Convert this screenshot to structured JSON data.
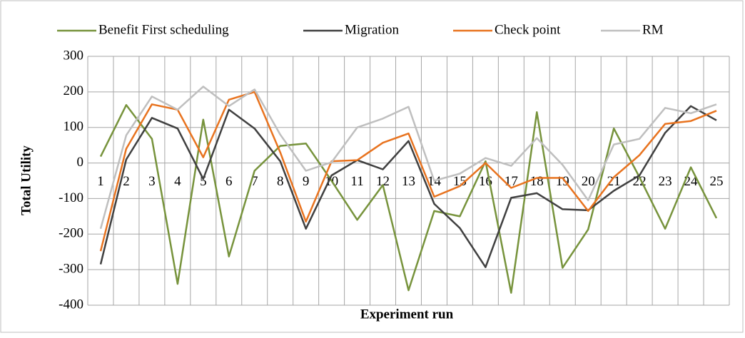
{
  "chart_data": {
    "type": "line",
    "x_label": "Experiment run",
    "y_label": "Total Utility",
    "categories": [
      "1",
      "2",
      "3",
      "4",
      "5",
      "6",
      "7",
      "8",
      "9",
      "10",
      "11",
      "12",
      "13",
      "14",
      "15",
      "16",
      "17",
      "18",
      "19",
      "20",
      "21",
      "22",
      "23",
      "24",
      "25"
    ],
    "series": [
      {
        "name": "Benefit First scheduling",
        "color": "#77933c",
        "values": [
          18,
          163,
          68,
          -340,
          122,
          -263,
          -22,
          48,
          55,
          -50,
          -160,
          -62,
          -358,
          -135,
          -150,
          5,
          -365,
          143,
          -295,
          -187,
          97,
          -40,
          -185,
          -12,
          -155
        ]
      },
      {
        "name": "Migration",
        "color": "#404040",
        "values": [
          -285,
          10,
          127,
          97,
          -45,
          150,
          97,
          5,
          -185,
          -35,
          8,
          -18,
          62,
          -115,
          -183,
          -293,
          -98,
          -85,
          -130,
          -133,
          -78,
          -35,
          85,
          160,
          120
        ]
      },
      {
        "name": "Check point",
        "color": "#e8731f",
        "values": [
          -248,
          40,
          165,
          150,
          16,
          178,
          200,
          30,
          -165,
          5,
          8,
          57,
          83,
          -95,
          -65,
          0,
          -70,
          -42,
          -42,
          -135,
          -40,
          22,
          110,
          118,
          147
        ]
      },
      {
        "name": "RM",
        "color": "#bfbfbf",
        "values": [
          -185,
          78,
          187,
          150,
          215,
          160,
          207,
          80,
          -22,
          2,
          100,
          125,
          158,
          -50,
          -30,
          14,
          -8,
          70,
          -5,
          -105,
          52,
          68,
          155,
          140,
          165
        ]
      }
    ],
    "ylim": [
      -400,
      300
    ],
    "yticks": [
      -400,
      -300,
      -200,
      -100,
      0,
      100,
      200,
      300
    ],
    "grid": true,
    "legend": "top"
  }
}
